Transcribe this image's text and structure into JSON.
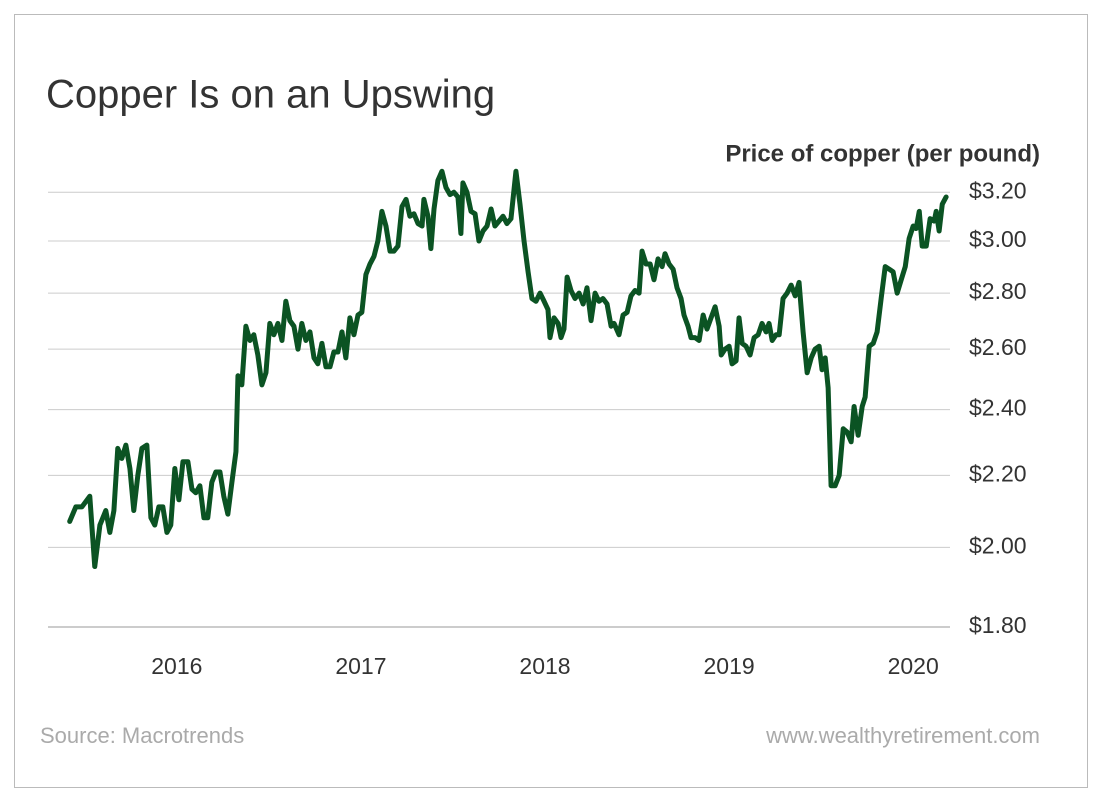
{
  "chart_data": {
    "type": "line",
    "title": "Copper Is on an Upswing",
    "subtitle": "Price of copper (per pound)",
    "source": "Source: Macrotrends",
    "website": "www.wealthyretirement.com",
    "color": "#0b5323",
    "ylog": true,
    "grid": true,
    "xlim": [
      2015.3,
      2020.2
    ],
    "xticks": [
      2016,
      2017,
      2018,
      2019,
      2020
    ],
    "ylim": [
      1.8,
      3.3
    ],
    "yticks": [
      {
        "value": 1.8,
        "label": "$1.80"
      },
      {
        "value": 2.0,
        "label": "$2.00"
      },
      {
        "value": 2.2,
        "label": "$2.20"
      },
      {
        "value": 2.4,
        "label": "$2.40"
      },
      {
        "value": 2.6,
        "label": "$2.60"
      },
      {
        "value": 2.8,
        "label": "$2.80"
      },
      {
        "value": 3.0,
        "label": "$3.00"
      },
      {
        "value": 3.2,
        "label": "$3.20"
      }
    ],
    "x": [
      2015.418,
      2015.451,
      2015.484,
      2015.527,
      2015.554,
      2015.582,
      2015.614,
      2015.636,
      2015.658,
      2015.679,
      2015.701,
      2015.723,
      2015.745,
      2015.766,
      2015.788,
      2015.81,
      2015.837,
      2015.859,
      2015.88,
      2015.902,
      2015.924,
      2015.946,
      2015.967,
      2015.989,
      2016.011,
      2016.033,
      2016.06,
      2016.082,
      2016.103,
      2016.125,
      2016.147,
      2016.168,
      2016.19,
      2016.212,
      2016.234,
      2016.255,
      2016.277,
      2016.299,
      2016.321,
      2016.332,
      2016.353,
      2016.375,
      2016.397,
      2016.418,
      2016.44,
      2016.462,
      2016.484,
      2016.505,
      2016.527,
      2016.549,
      2016.571,
      2016.592,
      2016.614,
      2016.636,
      2016.658,
      2016.679,
      2016.701,
      2016.723,
      2016.745,
      2016.766,
      2016.788,
      2016.81,
      2016.832,
      2016.853,
      2016.875,
      2016.897,
      2016.918,
      2016.94,
      2016.962,
      2016.984,
      2017.005,
      2017.027,
      2017.049,
      2017.071,
      2017.092,
      2017.114,
      2017.136,
      2017.158,
      2017.179,
      2017.201,
      2017.223,
      2017.245,
      2017.266,
      2017.288,
      2017.31,
      2017.332,
      2017.342,
      2017.364,
      2017.38,
      2017.397,
      2017.418,
      2017.44,
      2017.462,
      2017.484,
      2017.505,
      2017.527,
      2017.543,
      2017.554,
      2017.576,
      2017.598,
      2017.62,
      2017.641,
      2017.663,
      2017.685,
      2017.707,
      2017.728,
      2017.75,
      2017.772,
      2017.793,
      2017.815,
      2017.842,
      2017.864,
      2017.886,
      2017.908,
      2017.929,
      2017.951,
      2017.973,
      2017.995,
      2018.016,
      2018.027,
      2018.049,
      2018.071,
      2018.087,
      2018.103,
      2018.12,
      2018.141,
      2018.163,
      2018.185,
      2018.207,
      2018.228,
      2018.25,
      2018.272,
      2018.293,
      2018.315,
      2018.337,
      2018.359,
      2018.375,
      2018.402,
      2018.424,
      2018.446,
      2018.467,
      2018.489,
      2018.511,
      2018.527,
      2018.549,
      2018.571,
      2018.592,
      2018.614,
      2018.636,
      2018.652,
      2018.674,
      2018.696,
      2018.717,
      2018.739,
      2018.755,
      2018.777,
      2018.793,
      2018.815,
      2018.837,
      2018.859,
      2018.88,
      2018.902,
      2018.924,
      2018.946,
      2018.957,
      2018.978,
      2019.0,
      2019.016,
      2019.038,
      2019.054,
      2019.071,
      2019.092,
      2019.114,
      2019.136,
      2019.158,
      2019.179,
      2019.201,
      2019.217,
      2019.234,
      2019.255,
      2019.272,
      2019.293,
      2019.315,
      2019.337,
      2019.359,
      2019.38,
      2019.402,
      2019.424,
      2019.446,
      2019.467,
      2019.489,
      2019.505,
      2019.522,
      2019.538,
      2019.554,
      2019.576,
      2019.598,
      2019.62,
      2019.641,
      2019.663,
      2019.679,
      2019.701,
      2019.723,
      2019.739,
      2019.761,
      2019.783,
      2019.804,
      2019.826,
      2019.848,
      2019.87,
      2019.891,
      2019.913,
      2019.935,
      2019.957,
      2019.978,
      2020.0,
      2020.016,
      2020.033,
      2020.049,
      2020.071,
      2020.092,
      2020.114,
      2020.125,
      2020.141,
      2020.158,
      2020.179
    ],
    "values": [
      2.07,
      2.11,
      2.11,
      2.14,
      1.95,
      2.06,
      2.1,
      2.04,
      2.1,
      2.28,
      2.25,
      2.29,
      2.22,
      2.1,
      2.2,
      2.28,
      2.29,
      2.08,
      2.06,
      2.11,
      2.11,
      2.04,
      2.06,
      2.22,
      2.13,
      2.24,
      2.24,
      2.16,
      2.15,
      2.17,
      2.08,
      2.08,
      2.18,
      2.21,
      2.21,
      2.14,
      2.09,
      2.18,
      2.27,
      2.51,
      2.48,
      2.68,
      2.63,
      2.65,
      2.58,
      2.48,
      2.52,
      2.69,
      2.65,
      2.69,
      2.63,
      2.77,
      2.7,
      2.68,
      2.6,
      2.69,
      2.63,
      2.66,
      2.57,
      2.55,
      2.62,
      2.54,
      2.54,
      2.59,
      2.59,
      2.66,
      2.57,
      2.71,
      2.65,
      2.72,
      2.73,
      2.87,
      2.91,
      2.94,
      3.0,
      3.12,
      3.06,
      2.96,
      2.96,
      2.98,
      3.14,
      3.17,
      3.1,
      3.11,
      3.07,
      3.06,
      3.17,
      3.1,
      2.97,
      3.13,
      3.25,
      3.29,
      3.22,
      3.19,
      3.2,
      3.18,
      3.03,
      3.24,
      3.2,
      3.12,
      3.11,
      3.0,
      3.04,
      3.06,
      3.13,
      3.06,
      3.08,
      3.1,
      3.07,
      3.09,
      3.29,
      3.15,
      3.0,
      2.88,
      2.78,
      2.77,
      2.8,
      2.77,
      2.74,
      2.64,
      2.71,
      2.69,
      2.64,
      2.67,
      2.86,
      2.81,
      2.78,
      2.8,
      2.76,
      2.82,
      2.7,
      2.8,
      2.77,
      2.78,
      2.76,
      2.68,
      2.69,
      2.65,
      2.72,
      2.73,
      2.79,
      2.81,
      2.8,
      2.96,
      2.91,
      2.91,
      2.85,
      2.93,
      2.9,
      2.95,
      2.91,
      2.89,
      2.82,
      2.78,
      2.72,
      2.68,
      2.64,
      2.64,
      2.63,
      2.72,
      2.67,
      2.71,
      2.75,
      2.68,
      2.58,
      2.6,
      2.61,
      2.55,
      2.56,
      2.71,
      2.62,
      2.61,
      2.58,
      2.64,
      2.65,
      2.69,
      2.66,
      2.69,
      2.63,
      2.65,
      2.65,
      2.78,
      2.8,
      2.83,
      2.79,
      2.84,
      2.66,
      2.52,
      2.57,
      2.6,
      2.61,
      2.53,
      2.57,
      2.47,
      2.17,
      2.17,
      2.2,
      2.34,
      2.33,
      2.3,
      2.41,
      2.32,
      2.41,
      2.44,
      2.61,
      2.62,
      2.66,
      2.78,
      2.9,
      2.89,
      2.88,
      2.8,
      2.85,
      2.9,
      3.01,
      3.06,
      3.05,
      3.12,
      2.98,
      2.98,
      3.09,
      3.08,
      3.12,
      3.04,
      3.15,
      3.18
    ]
  }
}
